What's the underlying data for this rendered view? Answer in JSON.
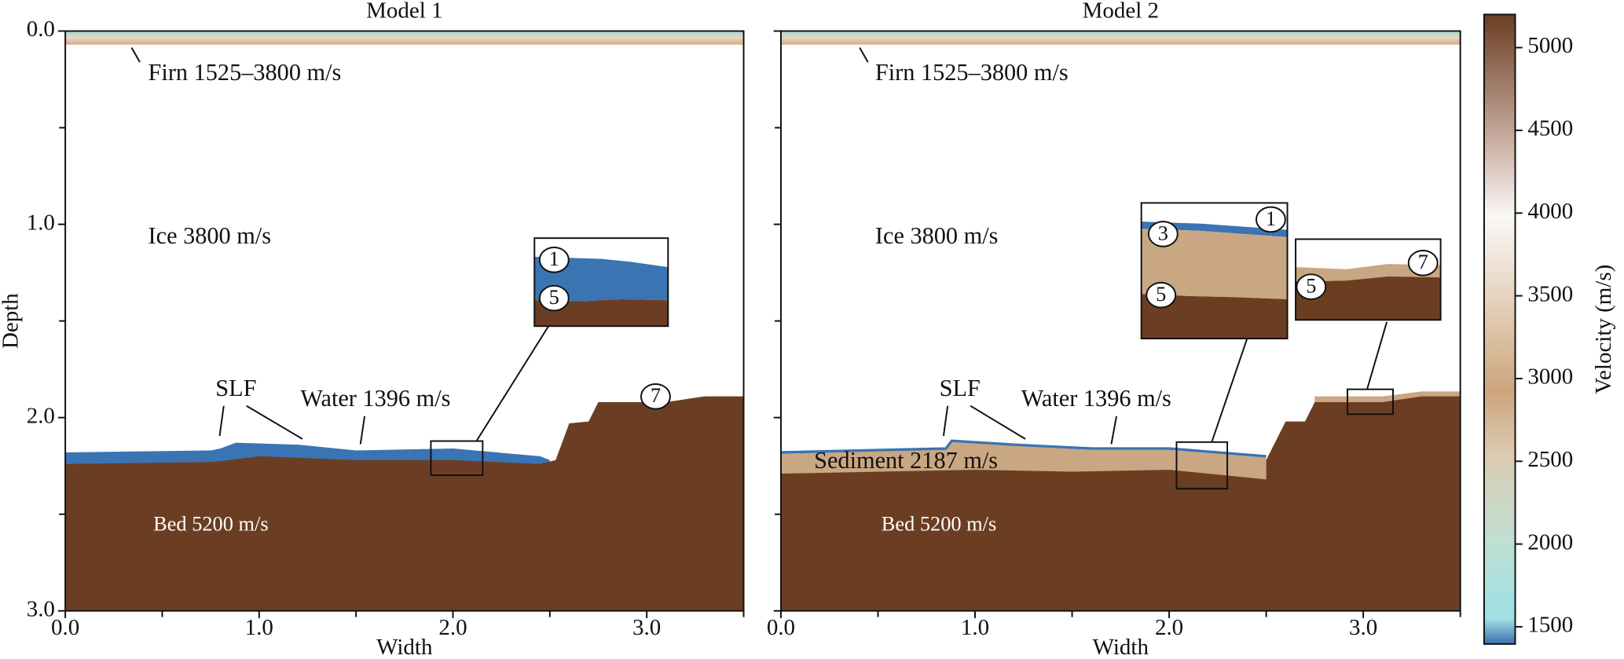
{
  "chart_data": [
    {
      "type": "layers",
      "title": "Model 1",
      "xlabel": "Width",
      "ylabel": "Depth",
      "xlim": [
        0,
        3.5
      ],
      "ylim": [
        0,
        3.0
      ],
      "y_inverted": true,
      "xticks": [
        {
          "value": 0,
          "label": "0.0"
        },
        {
          "value": 1,
          "label": "1.0"
        },
        {
          "value": 2,
          "label": "2.0"
        },
        {
          "value": 3,
          "label": "3.0"
        }
      ],
      "xminor": [
        0.5,
        1.5,
        2.5,
        3.5
      ],
      "yticks": [
        {
          "value": 0,
          "label": "0.0"
        },
        {
          "value": 1,
          "label": "1.0"
        },
        {
          "value": 2,
          "label": "2.0"
        },
        {
          "value": 3,
          "label": "3.0"
        }
      ],
      "yminor": [
        0.5,
        1.5,
        2.5
      ],
      "firn_depth": 0.07,
      "layers": [
        {
          "color": "#3a74b3",
          "x": [
            0,
            0.75,
            0.8,
            0.88,
            1.2,
            1.5,
            2.0,
            2.45,
            2.5
          ],
          "depth": [
            2.18,
            2.17,
            2.16,
            2.13,
            2.14,
            2.17,
            2.16,
            2.2,
            2.22
          ]
        },
        {
          "color": "#6b3e23",
          "x": [
            0,
            0.75,
            0.85,
            1.0,
            1.5,
            2.0,
            2.45,
            2.53,
            2.6,
            2.7,
            2.75,
            3.1,
            3.3,
            3.5
          ],
          "depth": [
            2.24,
            2.23,
            2.22,
            2.2,
            2.22,
            2.22,
            2.24,
            2.22,
            2.03,
            2.02,
            1.92,
            1.92,
            1.89,
            1.89
          ]
        }
      ],
      "annotations": [
        "Firn 1525–3800 m/s",
        "Ice 3800 m/s",
        "SLF",
        "Water 1396 m/s",
        "Bed 5200 m/s"
      ],
      "markers": [
        "7",
        "1",
        "5"
      ]
    },
    {
      "type": "layers",
      "title": "Model 2",
      "xlabel": "Width",
      "xlim": [
        0,
        3.5
      ],
      "ylim": [
        0,
        3.0
      ],
      "y_inverted": true,
      "xticks": [
        {
          "value": 0,
          "label": "0.0"
        },
        {
          "value": 1,
          "label": "1.0"
        },
        {
          "value": 2,
          "label": "2.0"
        },
        {
          "value": 3,
          "label": "3.0"
        }
      ],
      "xminor": [
        0.5,
        1.5,
        2.5,
        3.5
      ],
      "yticks": [
        0,
        1,
        2,
        3
      ],
      "yminor": [
        0.5,
        1.5,
        2.5
      ],
      "firn_depth": 0.07,
      "layers": [
        {
          "color": "#c9a783",
          "edge": "#3a74b3",
          "x": [
            0,
            0.85,
            0.88,
            1.2,
            1.6,
            2.0,
            2.5
          ],
          "depth": [
            2.18,
            2.16,
            2.12,
            2.14,
            2.16,
            2.16,
            2.2
          ]
        },
        {
          "color": "#c9a783",
          "x": [
            2.75,
            3.1,
            3.3,
            3.5
          ],
          "depth": [
            1.89,
            1.89,
            1.865,
            1.865
          ]
        },
        {
          "color": "#6b3e23",
          "x": [
            0,
            1.0,
            1.5,
            2.0,
            2.5,
            2.5,
            2.6,
            2.7,
            2.75,
            3.1,
            3.3,
            3.5
          ],
          "depth": [
            2.29,
            2.27,
            2.28,
            2.27,
            2.32,
            2.22,
            2.02,
            2.02,
            1.92,
            1.92,
            1.89,
            1.89
          ]
        }
      ],
      "annotations": [
        "Firn 1525–3800 m/s",
        "Ice 3800 m/s",
        "SLF",
        "Water 1396 m/s",
        "Sediment 2187 m/s",
        "Bed 5200 m/s"
      ],
      "markers": [
        "3",
        "1",
        "5",
        "5",
        "7"
      ]
    },
    {
      "type": "colorbar",
      "ylabel": "Velocity (m/s)",
      "ylim": [
        1396,
        5200
      ],
      "yticks": [
        1500,
        2000,
        2500,
        3000,
        3500,
        4000,
        4500,
        5000
      ]
    }
  ]
}
